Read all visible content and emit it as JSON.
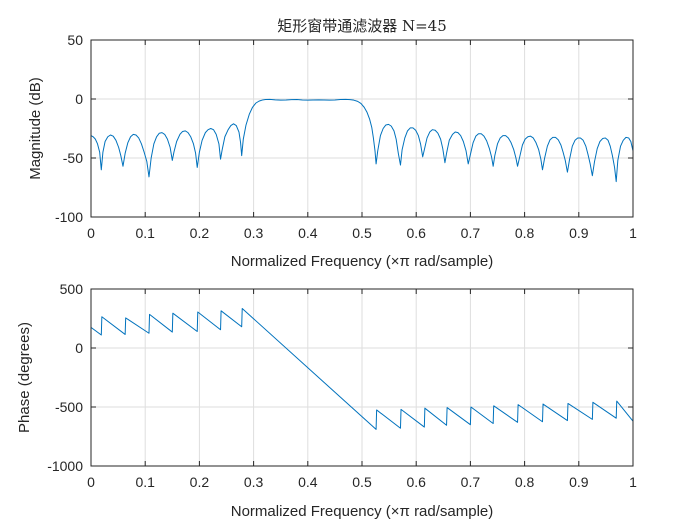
{
  "chart_data": [
    {
      "type": "line",
      "title": "矩形窗带通滤波器 N=45",
      "xlabel": "Normalized Frequency  (×π rad/sample)",
      "ylabel": "Magnitude (dB)",
      "xlim": [
        0,
        1
      ],
      "ylim": [
        -100,
        50
      ],
      "xticks": [
        0,
        0.1,
        0.2,
        0.3,
        0.4,
        0.5,
        0.6,
        0.7,
        0.8,
        0.9,
        1
      ],
      "xtick_labels": [
        "0",
        "0.1",
        "0.2",
        "0.3",
        "0.4",
        "0.5",
        "0.6",
        "0.7",
        "0.8",
        "0.9",
        "1"
      ],
      "yticks": [
        -100,
        -50,
        0,
        50
      ],
      "ytick_labels": [
        "-100",
        "-50",
        "0",
        "50"
      ],
      "grid": true,
      "color": "#0072BD",
      "series": [
        {
          "points": [
            [
              0,
              -31
            ],
            [
              0.004,
              -32
            ],
            [
              0.008,
              -34
            ],
            [
              0.012,
              -38
            ],
            [
              0.016,
              -45
            ],
            [
              0.019,
              -60
            ],
            [
              0.022,
              -45
            ],
            [
              0.026,
              -36
            ],
            [
              0.031,
              -32
            ],
            [
              0.036,
              -30.5
            ],
            [
              0.041,
              -31.5
            ],
            [
              0.046,
              -35
            ],
            [
              0.051,
              -41
            ],
            [
              0.055,
              -48
            ],
            [
              0.059,
              -57
            ],
            [
              0.063,
              -46
            ],
            [
              0.068,
              -37
            ],
            [
              0.073,
              -32
            ],
            [
              0.078,
              -30
            ],
            [
              0.083,
              -30.5
            ],
            [
              0.088,
              -33
            ],
            [
              0.093,
              -38
            ],
            [
              0.098,
              -45
            ],
            [
              0.103,
              -53
            ],
            [
              0.107,
              -66
            ],
            [
              0.111,
              -50
            ],
            [
              0.116,
              -38
            ],
            [
              0.121,
              -32
            ],
            [
              0.126,
              -29
            ],
            [
              0.131,
              -28.5
            ],
            [
              0.136,
              -30
            ],
            [
              0.141,
              -34
            ],
            [
              0.146,
              -41
            ],
            [
              0.15,
              -52
            ],
            [
              0.153,
              -45
            ],
            [
              0.158,
              -36
            ],
            [
              0.164,
              -30
            ],
            [
              0.169,
              -27.5
            ],
            [
              0.174,
              -27
            ],
            [
              0.179,
              -28.5
            ],
            [
              0.184,
              -32
            ],
            [
              0.189,
              -38
            ],
            [
              0.193,
              -46
            ],
            [
              0.196,
              -58
            ],
            [
              0.2,
              -45
            ],
            [
              0.205,
              -35
            ],
            [
              0.211,
              -28.5
            ],
            [
              0.216,
              -26
            ],
            [
              0.221,
              -25
            ],
            [
              0.226,
              -26
            ],
            [
              0.231,
              -30
            ],
            [
              0.236,
              -38
            ],
            [
              0.239,
              -51
            ],
            [
              0.242,
              -43
            ],
            [
              0.247,
              -32
            ],
            [
              0.253,
              -26
            ],
            [
              0.258,
              -22.5
            ],
            [
              0.263,
              -21
            ],
            [
              0.268,
              -22.5
            ],
            [
              0.273,
              -28
            ],
            [
              0.276,
              -37
            ],
            [
              0.278,
              -48
            ],
            [
              0.281,
              -34
            ],
            [
              0.286,
              -22
            ],
            [
              0.292,
              -13
            ],
            [
              0.298,
              -7
            ],
            [
              0.304,
              -3.5
            ],
            [
              0.31,
              -1.8
            ],
            [
              0.316,
              -0.9
            ],
            [
              0.322,
              -0.4
            ],
            [
              0.33,
              -0.3
            ],
            [
              0.34,
              -0.7
            ],
            [
              0.35,
              -1
            ],
            [
              0.36,
              -0.9
            ],
            [
              0.37,
              -0.5
            ],
            [
              0.38,
              -0.4
            ],
            [
              0.39,
              -0.8
            ],
            [
              0.4,
              -1
            ],
            [
              0.41,
              -0.8
            ],
            [
              0.42,
              -0.7
            ],
            [
              0.43,
              -0.9
            ],
            [
              0.44,
              -1
            ],
            [
              0.45,
              -0.8
            ],
            [
              0.46,
              -0.4
            ],
            [
              0.47,
              -0.3
            ],
            [
              0.478,
              -0.5
            ],
            [
              0.485,
              -1
            ],
            [
              0.492,
              -2
            ],
            [
              0.498,
              -3.8
            ],
            [
              0.504,
              -7
            ],
            [
              0.509,
              -11
            ],
            [
              0.514,
              -17
            ],
            [
              0.518,
              -24
            ],
            [
              0.521,
              -33
            ],
            [
              0.524,
              -44
            ],
            [
              0.526,
              -55
            ],
            [
              0.529,
              -44
            ],
            [
              0.534,
              -31
            ],
            [
              0.539,
              -25
            ],
            [
              0.544,
              -22
            ],
            [
              0.549,
              -21.5
            ],
            [
              0.554,
              -23
            ],
            [
              0.559,
              -27
            ],
            [
              0.563,
              -34
            ],
            [
              0.567,
              -46
            ],
            [
              0.571,
              -56
            ],
            [
              0.574,
              -43
            ],
            [
              0.579,
              -33
            ],
            [
              0.584,
              -27
            ],
            [
              0.589,
              -24.5
            ],
            [
              0.594,
              -24.5
            ],
            [
              0.599,
              -26.5
            ],
            [
              0.604,
              -31
            ],
            [
              0.608,
              -38
            ],
            [
              0.612,
              -49
            ],
            [
              0.615,
              -43
            ],
            [
              0.62,
              -33
            ],
            [
              0.625,
              -28
            ],
            [
              0.63,
              -26
            ],
            [
              0.635,
              -26.5
            ],
            [
              0.64,
              -29
            ],
            [
              0.645,
              -34
            ],
            [
              0.649,
              -42
            ],
            [
              0.653,
              -54
            ],
            [
              0.656,
              -46
            ],
            [
              0.661,
              -35
            ],
            [
              0.667,
              -30
            ],
            [
              0.672,
              -28
            ],
            [
              0.677,
              -28.5
            ],
            [
              0.682,
              -31
            ],
            [
              0.687,
              -36
            ],
            [
              0.692,
              -44
            ],
            [
              0.696,
              -55
            ],
            [
              0.7,
              -47
            ],
            [
              0.705,
              -37
            ],
            [
              0.71,
              -31.5
            ],
            [
              0.715,
              -29.5
            ],
            [
              0.72,
              -29.5
            ],
            [
              0.725,
              -31.5
            ],
            [
              0.73,
              -35.5
            ],
            [
              0.735,
              -42
            ],
            [
              0.739,
              -49
            ],
            [
              0.742,
              -57
            ],
            [
              0.745,
              -48
            ],
            [
              0.75,
              -38
            ],
            [
              0.755,
              -33
            ],
            [
              0.76,
              -31
            ],
            [
              0.765,
              -31
            ],
            [
              0.77,
              -33
            ],
            [
              0.775,
              -37
            ],
            [
              0.78,
              -43
            ],
            [
              0.784,
              -50
            ],
            [
              0.787,
              -57
            ],
            [
              0.791,
              -49
            ],
            [
              0.796,
              -39
            ],
            [
              0.801,
              -34
            ],
            [
              0.806,
              -32
            ],
            [
              0.811,
              -31.5
            ],
            [
              0.816,
              -33
            ],
            [
              0.821,
              -37
            ],
            [
              0.826,
              -43
            ],
            [
              0.83,
              -51
            ],
            [
              0.833,
              -60
            ],
            [
              0.837,
              -50
            ],
            [
              0.842,
              -40
            ],
            [
              0.847,
              -34.5
            ],
            [
              0.852,
              -32.5
            ],
            [
              0.857,
              -32.5
            ],
            [
              0.862,
              -34.5
            ],
            [
              0.867,
              -39
            ],
            [
              0.871,
              -45
            ],
            [
              0.875,
              -52
            ],
            [
              0.879,
              -62
            ],
            [
              0.883,
              -51
            ],
            [
              0.888,
              -40
            ],
            [
              0.893,
              -35
            ],
            [
              0.898,
              -33
            ],
            [
              0.903,
              -33
            ],
            [
              0.908,
              -35
            ],
            [
              0.913,
              -40
            ],
            [
              0.917,
              -47
            ],
            [
              0.921,
              -55
            ],
            [
              0.925,
              -65
            ],
            [
              0.929,
              -53
            ],
            [
              0.934,
              -42
            ],
            [
              0.939,
              -36
            ],
            [
              0.944,
              -33.5
            ],
            [
              0.949,
              -33
            ],
            [
              0.954,
              -35
            ],
            [
              0.958,
              -40
            ],
            [
              0.962,
              -48
            ],
            [
              0.966,
              -58
            ],
            [
              0.969,
              -70
            ],
            [
              0.972,
              -52
            ],
            [
              0.977,
              -40
            ],
            [
              0.982,
              -35
            ],
            [
              0.987,
              -32.5
            ],
            [
              0.992,
              -33
            ],
            [
              0.996,
              -36
            ],
            [
              1,
              -44
            ]
          ]
        }
      ]
    },
    {
      "type": "line",
      "title": "",
      "xlabel": "Normalized Frequency  (×π rad/sample)",
      "ylabel": "Phase (degrees)",
      "xlim": [
        0,
        1
      ],
      "ylim": [
        -1000,
        500
      ],
      "xticks": [
        0,
        0.1,
        0.2,
        0.3,
        0.4,
        0.5,
        0.6,
        0.7,
        0.8,
        0.9,
        1
      ],
      "xtick_labels": [
        "0",
        "0.1",
        "0.2",
        "0.3",
        "0.4",
        "0.5",
        "0.6",
        "0.7",
        "0.8",
        "0.9",
        "1"
      ],
      "yticks": [
        -1000,
        -500,
        0,
        500
      ],
      "ytick_labels": [
        "-1000",
        "-500",
        "0",
        "500"
      ],
      "grid": true,
      "color": "#0072BD",
      "series": [
        {
          "points": [
            [
              0,
              175
            ],
            [
              0.019,
              110
            ],
            [
              0.02,
              265
            ],
            [
              0.063,
              115
            ],
            [
              0.064,
              255
            ],
            [
              0.107,
              125
            ],
            [
              0.108,
              285
            ],
            [
              0.15,
              135
            ],
            [
              0.151,
              295
            ],
            [
              0.196,
              140
            ],
            [
              0.197,
              305
            ],
            [
              0.239,
              155
            ],
            [
              0.24,
              315
            ],
            [
              0.278,
              180
            ],
            [
              0.279,
              335
            ],
            [
              0.526,
              -690
            ],
            [
              0.527,
              -525
            ],
            [
              0.571,
              -680
            ],
            [
              0.572,
              -520
            ],
            [
              0.615,
              -670
            ],
            [
              0.616,
              -510
            ],
            [
              0.656,
              -655
            ],
            [
              0.657,
              -505
            ],
            [
              0.7,
              -650
            ],
            [
              0.701,
              -500
            ],
            [
              0.742,
              -640
            ],
            [
              0.743,
              -490
            ],
            [
              0.787,
              -630
            ],
            [
              0.788,
              -480
            ],
            [
              0.833,
              -625
            ],
            [
              0.834,
              -475
            ],
            [
              0.879,
              -615
            ],
            [
              0.88,
              -470
            ],
            [
              0.925,
              -605
            ],
            [
              0.926,
              -460
            ],
            [
              0.969,
              -595
            ],
            [
              0.97,
              -450
            ],
            [
              1,
              -620
            ]
          ]
        }
      ]
    }
  ]
}
